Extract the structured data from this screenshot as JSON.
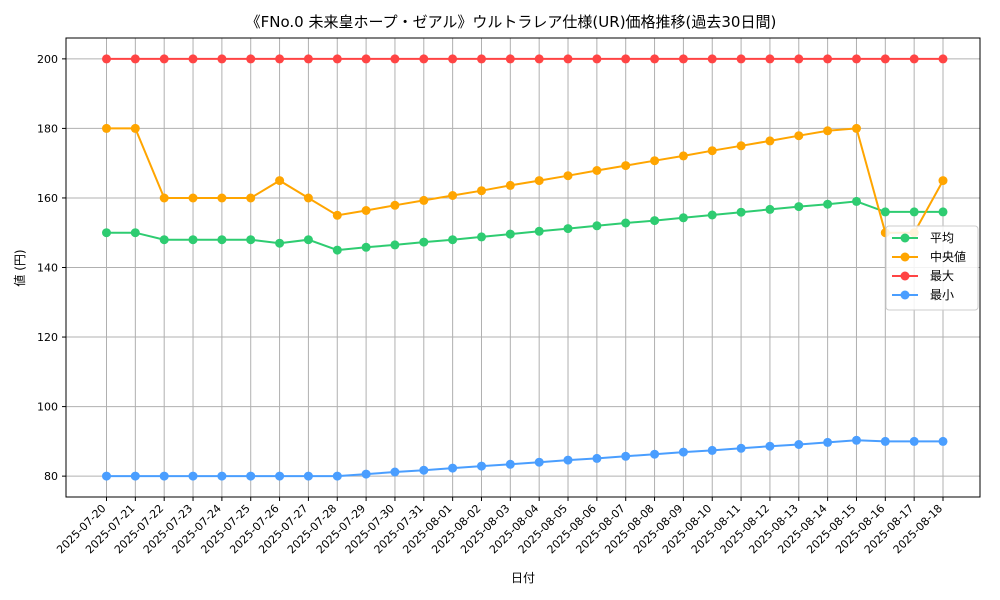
{
  "chart_data": {
    "type": "line",
    "title": "《FNo.0 未来皇ホープ・ゼアル》ウルトラレア仕様(UR)価格推移(過去30日間)",
    "xlabel": "日付",
    "ylabel": "値 (円)",
    "ylim": [
      74,
      206
    ],
    "yticks": [
      80,
      100,
      120,
      140,
      160,
      180,
      200
    ],
    "grid": true,
    "legend_position": "center-right",
    "categories": [
      "2025-07-20",
      "2025-07-21",
      "2025-07-22",
      "2025-07-23",
      "2025-07-24",
      "2025-07-25",
      "2025-07-26",
      "2025-07-27",
      "2025-07-28",
      "2025-07-29",
      "2025-07-30",
      "2025-07-31",
      "2025-08-01",
      "2025-08-02",
      "2025-08-03",
      "2025-08-04",
      "2025-08-05",
      "2025-08-06",
      "2025-08-07",
      "2025-08-08",
      "2025-08-09",
      "2025-08-10",
      "2025-08-11",
      "2025-08-12",
      "2025-08-13",
      "2025-08-14",
      "2025-08-15",
      "2025-08-16",
      "2025-08-17",
      "2025-08-18"
    ],
    "series": [
      {
        "name": "平均",
        "color": "#2ecc71",
        "values": [
          150,
          150,
          148,
          148,
          148,
          148,
          147,
          148,
          145,
          145.8,
          146.5,
          147.3,
          148,
          148.8,
          149.6,
          150.4,
          151.2,
          152,
          152.8,
          153.5,
          154.3,
          155.1,
          155.9,
          156.7,
          157.5,
          158.2,
          159,
          156,
          156,
          156
        ]
      },
      {
        "name": "中央値",
        "color": "#ffa500",
        "values": [
          180,
          180,
          160,
          160,
          160,
          160,
          165,
          160,
          155,
          156.4,
          157.9,
          159.3,
          160.7,
          162.1,
          163.6,
          165,
          166.4,
          167.9,
          169.3,
          170.7,
          172.1,
          173.6,
          175,
          176.4,
          177.9,
          179.3,
          180,
          150,
          150,
          165
        ]
      },
      {
        "name": "最大",
        "color": "#ff4444",
        "values": [
          200,
          200,
          200,
          200,
          200,
          200,
          200,
          200,
          200,
          200,
          200,
          200,
          200,
          200,
          200,
          200,
          200,
          200,
          200,
          200,
          200,
          200,
          200,
          200,
          200,
          200,
          200,
          200,
          200,
          200
        ]
      },
      {
        "name": "最小",
        "color": "#4a9eff",
        "values": [
          80,
          80,
          80,
          80,
          80,
          80,
          80,
          80,
          80,
          80.6,
          81.2,
          81.7,
          82.3,
          82.9,
          83.4,
          84,
          84.6,
          85.1,
          85.7,
          86.3,
          86.9,
          87.4,
          88,
          88.6,
          89.1,
          89.7,
          90.3,
          90,
          90,
          90
        ]
      }
    ]
  }
}
